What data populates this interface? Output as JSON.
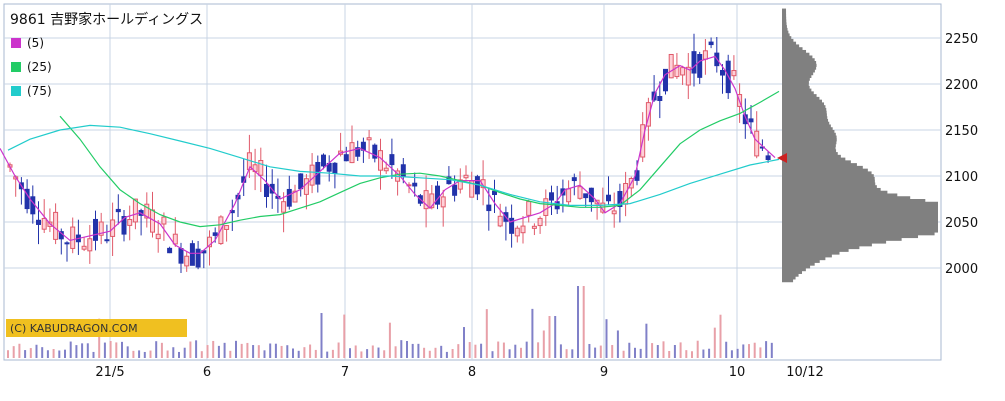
{
  "chart_title": "9861 吉野家ホールディングス",
  "legend": [
    {
      "label": "(5)",
      "color": "#cc33cc"
    },
    {
      "label": "(25)",
      "color": "#22cc66"
    },
    {
      "label": "(75)",
      "color": "#22cccc"
    }
  ],
  "watermark": "(C) KABUDRAGON.COM",
  "chart_data": {
    "type": "line",
    "y_ticks": [
      2000,
      2050,
      2100,
      2150,
      2200,
      2250
    ],
    "ylim": [
      1965,
      2285
    ],
    "x_tick_labels": [
      "21/5",
      "6",
      "7",
      "8",
      "9",
      "10",
      "10/12"
    ],
    "current_price": 2118,
    "series": [
      {
        "name": "(5)",
        "color": "#cc33cc",
        "points": [
          [
            0,
            2130
          ],
          [
            15,
            2100
          ],
          [
            30,
            2075
          ],
          [
            50,
            2048
          ],
          [
            70,
            2030
          ],
          [
            90,
            2035
          ],
          [
            110,
            2040
          ],
          [
            125,
            2055
          ],
          [
            140,
            2060
          ],
          [
            160,
            2048
          ],
          [
            175,
            2025
          ],
          [
            190,
            2016
          ],
          [
            200,
            2016
          ],
          [
            215,
            2030
          ],
          [
            235,
            2070
          ],
          [
            250,
            2110
          ],
          [
            265,
            2095
          ],
          [
            280,
            2075
          ],
          [
            300,
            2085
          ],
          [
            320,
            2105
          ],
          [
            340,
            2125
          ],
          [
            360,
            2130
          ],
          [
            380,
            2120
          ],
          [
            400,
            2100
          ],
          [
            415,
            2080
          ],
          [
            430,
            2065
          ],
          [
            445,
            2085
          ],
          [
            460,
            2095
          ],
          [
            480,
            2095
          ],
          [
            495,
            2070
          ],
          [
            510,
            2050
          ],
          [
            525,
            2055
          ],
          [
            540,
            2060
          ],
          [
            555,
            2070
          ],
          [
            565,
            2085
          ],
          [
            580,
            2090
          ],
          [
            595,
            2075
          ],
          [
            605,
            2060
          ],
          [
            620,
            2070
          ],
          [
            635,
            2100
          ],
          [
            645,
            2150
          ],
          [
            655,
            2190
          ],
          [
            665,
            2210
          ],
          [
            680,
            2220
          ],
          [
            690,
            2215
          ],
          [
            700,
            2225
          ],
          [
            715,
            2230
          ],
          [
            725,
            2215
          ],
          [
            735,
            2195
          ],
          [
            745,
            2165
          ],
          [
            755,
            2140
          ],
          [
            765,
            2130
          ],
          [
            775,
            2120
          ]
        ]
      },
      {
        "name": "(25)",
        "color": "#22cc66",
        "points": [
          [
            60,
            2165
          ],
          [
            80,
            2140
          ],
          [
            100,
            2110
          ],
          [
            120,
            2085
          ],
          [
            140,
            2070
          ],
          [
            160,
            2058
          ],
          [
            180,
            2050
          ],
          [
            200,
            2045
          ],
          [
            220,
            2047
          ],
          [
            240,
            2052
          ],
          [
            260,
            2056
          ],
          [
            280,
            2058
          ],
          [
            300,
            2065
          ],
          [
            320,
            2072
          ],
          [
            340,
            2082
          ],
          [
            360,
            2092
          ],
          [
            380,
            2098
          ],
          [
            400,
            2102
          ],
          [
            420,
            2103
          ],
          [
            440,
            2100
          ],
          [
            460,
            2095
          ],
          [
            480,
            2090
          ],
          [
            500,
            2082
          ],
          [
            520,
            2075
          ],
          [
            540,
            2070
          ],
          [
            560,
            2068
          ],
          [
            580,
            2066
          ],
          [
            600,
            2066
          ],
          [
            620,
            2068
          ],
          [
            640,
            2085
          ],
          [
            660,
            2110
          ],
          [
            680,
            2135
          ],
          [
            700,
            2150
          ],
          [
            720,
            2160
          ],
          [
            740,
            2168
          ],
          [
            760,
            2180
          ],
          [
            779,
            2192
          ]
        ]
      },
      {
        "name": "(75)",
        "color": "#22cccc",
        "points": [
          [
            8,
            2128
          ],
          [
            30,
            2140
          ],
          [
            60,
            2150
          ],
          [
            90,
            2155
          ],
          [
            120,
            2153
          ],
          [
            150,
            2146
          ],
          [
            180,
            2138
          ],
          [
            210,
            2130
          ],
          [
            240,
            2120
          ],
          [
            270,
            2110
          ],
          [
            300,
            2105
          ],
          [
            330,
            2103
          ],
          [
            360,
            2100
          ],
          [
            390,
            2100
          ],
          [
            420,
            2098
          ],
          [
            450,
            2096
          ],
          [
            480,
            2090
          ],
          [
            510,
            2080
          ],
          [
            540,
            2072
          ],
          [
            570,
            2068
          ],
          [
            600,
            2068
          ],
          [
            630,
            2070
          ],
          [
            660,
            2080
          ],
          [
            690,
            2092
          ],
          [
            720,
            2102
          ],
          [
            750,
            2112
          ],
          [
            779,
            2118
          ]
        ]
      }
    ]
  }
}
